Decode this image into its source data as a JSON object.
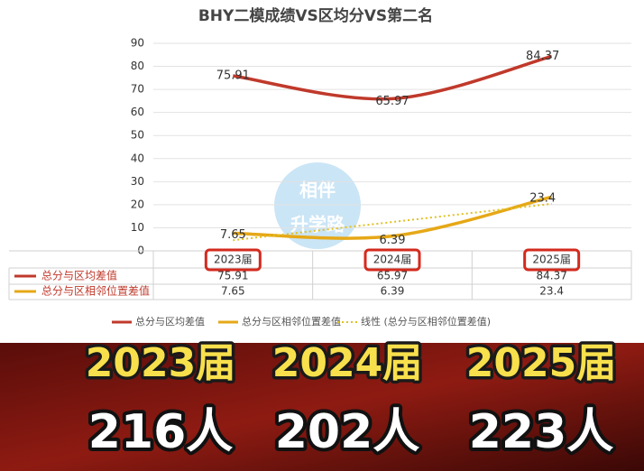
{
  "chart_data": {
    "type": "line",
    "title": "BHY二模成绩VS区均分VS第二名",
    "categories": [
      "2023届",
      "2024届",
      "2025届"
    ],
    "series": [
      {
        "name": "总分与区均差值",
        "color": "#c0392b",
        "values": [
          75.91,
          65.97,
          84.37
        ]
      },
      {
        "name": "总分与区相邻位置差值",
        "color": "#e6a817",
        "values": [
          7.65,
          6.39,
          23.4
        ]
      },
      {
        "name": "线性 (总分与区相邻位置差值)",
        "color": "#e0c020",
        "values": [
          4.6,
          12.5,
          20.4
        ],
        "style": "dotted"
      }
    ],
    "ylim": [
      0,
      90
    ],
    "yticks": [
      0,
      10,
      20,
      30,
      40,
      50,
      60,
      70,
      80,
      90
    ],
    "grid": true,
    "legend": "bottom"
  },
  "watermark": [
    "相伴",
    "升学路"
  ],
  "overlay": {
    "years": [
      "2023届",
      "2024届",
      "2025届"
    ],
    "counts": [
      "216人",
      "202人",
      "223人"
    ]
  }
}
